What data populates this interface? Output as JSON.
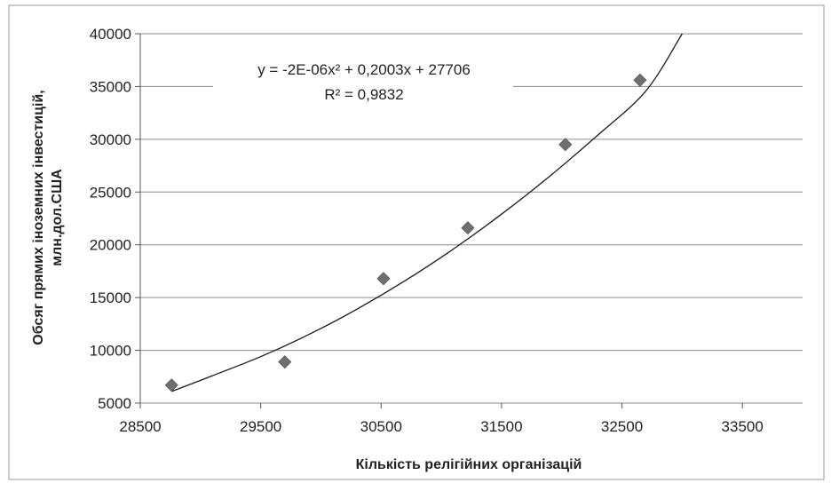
{
  "chart_data": {
    "type": "scatter",
    "title": "",
    "xlabel": "Кількість релігійних організацій",
    "ylabel_lines": [
      "Обсяг прямих іноземних інвестицій,",
      "млн.дол.США"
    ],
    "xlim": [
      28500,
      34000
    ],
    "ylim": [
      5000,
      40000
    ],
    "x_ticks": [
      28500,
      29500,
      30500,
      31500,
      32500,
      33500
    ],
    "y_ticks": [
      5000,
      10000,
      15000,
      20000,
      25000,
      30000,
      35000,
      40000
    ],
    "grid": "horizontal",
    "legend": "none",
    "points": [
      {
        "x": 28760,
        "y": 6700
      },
      {
        "x": 29700,
        "y": 8900
      },
      {
        "x": 30520,
        "y": 16800
      },
      {
        "x": 31220,
        "y": 21600
      },
      {
        "x": 32030,
        "y": 29500
      },
      {
        "x": 32650,
        "y": 35600
      }
    ],
    "trendline": {
      "type": "polynomial",
      "x_range": [
        28760,
        33000
      ],
      "samples": [
        {
          "x": 28760,
          "y": 6100
        },
        {
          "x": 29100,
          "y": 7600
        },
        {
          "x": 29500,
          "y": 9400
        },
        {
          "x": 29900,
          "y": 11500
        },
        {
          "x": 30300,
          "y": 13900
        },
        {
          "x": 30700,
          "y": 16600
        },
        {
          "x": 31100,
          "y": 19600
        },
        {
          "x": 31500,
          "y": 22900
        },
        {
          "x": 31900,
          "y": 26500
        },
        {
          "x": 32300,
          "y": 30400
        },
        {
          "x": 32700,
          "y": 34600
        },
        {
          "x": 33000,
          "y": 40000
        }
      ],
      "equation": "y = -2E-06x² + 0,2003x + 27706",
      "r_squared": "R² = 0,9832"
    },
    "colors": {
      "marker": "#6f6f6f",
      "trendline": "#1a1a1a",
      "gridline": "#8c8c8c",
      "text": "#222222"
    }
  }
}
